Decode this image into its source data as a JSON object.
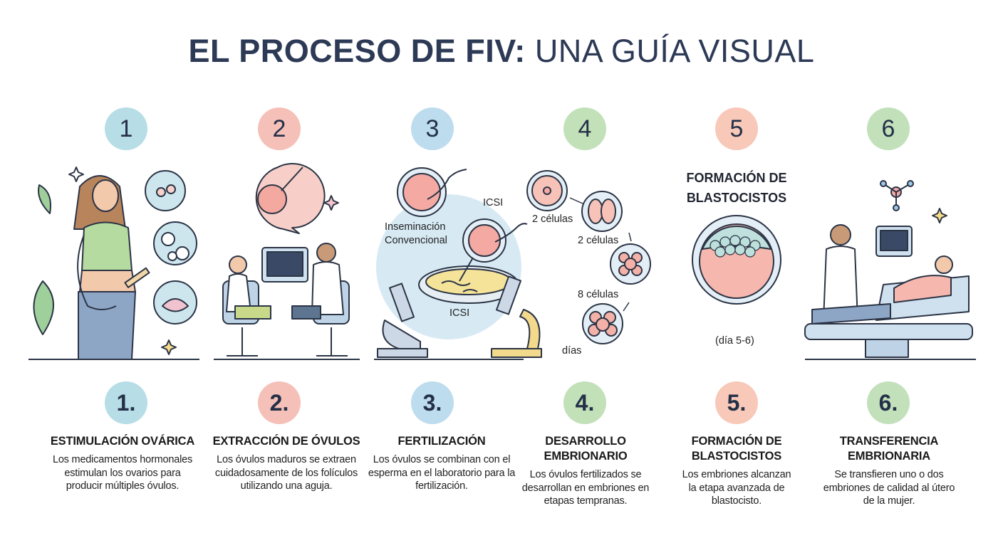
{
  "title": {
    "bold": "EL PROCESO DE FIV:",
    "regular": "UNA GUÍA VISUAL"
  },
  "colors": {
    "title": "#2d3a56",
    "step_circles": [
      "#b7dde6",
      "#f5c0b8",
      "#bddcee",
      "#c2e1b8",
      "#f8c8b9",
      "#c2e1bb"
    ]
  },
  "top_numbers": [
    "1",
    "2",
    "3",
    "4",
    "5",
    "6"
  ],
  "illustration_labels": {
    "fertilization": {
      "conventional": "Inseminación Convencional",
      "icsi_top": "ICSI",
      "icsi_bottom": "ICSI"
    },
    "embryo": {
      "label_1": "2 células",
      "label_2": "2 células",
      "label_3": "8 células",
      "label_4": "días"
    },
    "blastocyst": {
      "title": "FORMACIÓN DE BLASTOCISTOS",
      "day": "(día 5-6)"
    }
  },
  "steps": [
    {
      "number": "1.",
      "title": "ESTIMULACIÓN OVÁRICA",
      "description": "Los medicamentos hormonales estimulan los ovarios para producir múltiples óvulos.",
      "icon": "woman-injection-icon"
    },
    {
      "number": "2.",
      "title": "EXTRACCIÓN DE ÓVULOS",
      "description": "Los óvulos maduros se extraen cuidadosamente de los folículos utilizando una aguja.",
      "icon": "egg-retrieval-icon"
    },
    {
      "number": "3.",
      "title": "FERTILIZACIÓN",
      "description": "Los óvulos se combinan con el esperma en el laboratorio para la fertilización.",
      "icon": "lab-fertilization-icon"
    },
    {
      "number": "4.",
      "title": "DESARROLLO EMBRIONARIO",
      "description": "Los óvulos fertilizados se desarrollan en embriones en etapas tempranas.",
      "icon": "embryo-division-icon"
    },
    {
      "number": "5.",
      "title": "FORMACIÓN DE BLASTOCISTOS",
      "description": "Los embriones alcanzan la etapa avanzada de blastocisto.",
      "icon": "blastocyst-icon"
    },
    {
      "number": "6.",
      "title": "TRANSFERENCIA EMBRIONARIA",
      "description": "Se transfieren uno o dos embriones de calidad al útero de la mujer.",
      "icon": "embryo-transfer-icon"
    }
  ]
}
